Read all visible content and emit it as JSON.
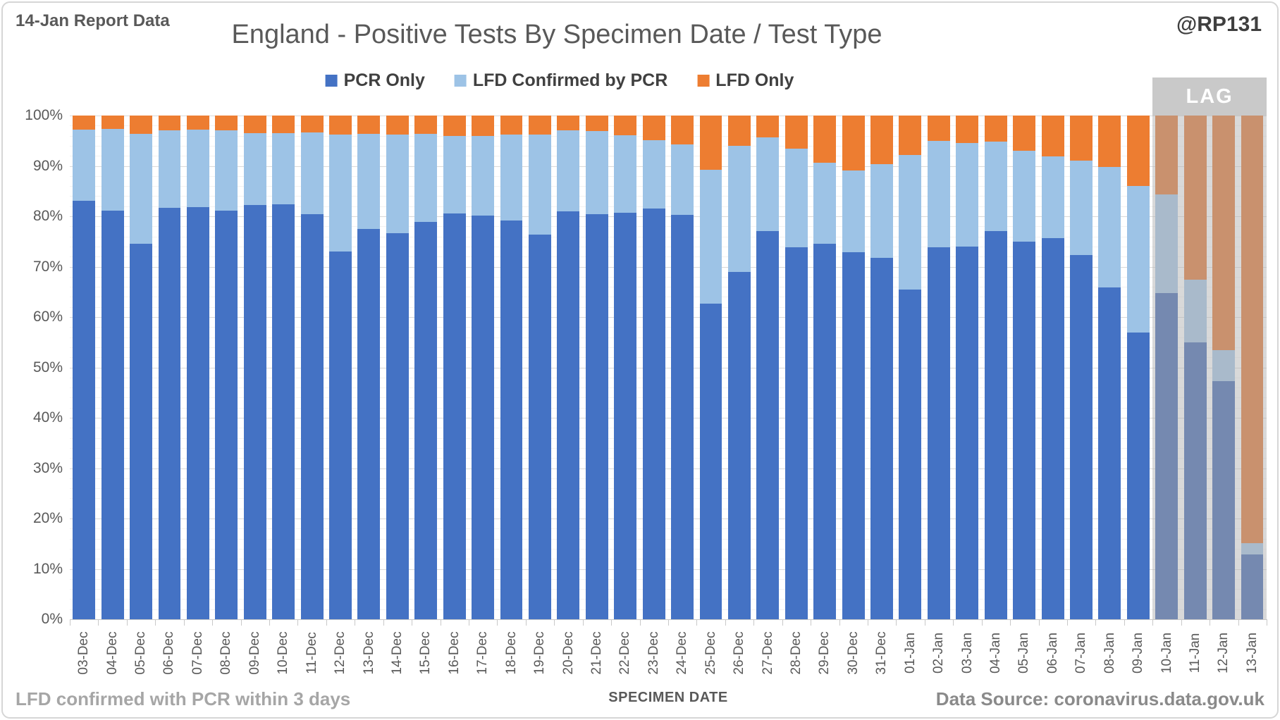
{
  "header": {
    "report_note": "14-Jan Report Data",
    "title": "England - Positive Tests By Specimen Date / Test Type",
    "handle": "@RP131"
  },
  "legend": [
    {
      "label": "PCR Only",
      "color": "#4472C4"
    },
    {
      "label": "LFD Confirmed by PCR",
      "color": "#9DC3E6"
    },
    {
      "label": "LFD Only",
      "color": "#ED7D31"
    }
  ],
  "footer": {
    "left_note": "LFD confirmed with PCR within 3 days",
    "xaxis_title": "SPECIMEN DATE",
    "data_source": "Data Source: coronavirus.data.gov.uk"
  },
  "lag": {
    "label": "LAG",
    "start_category": "10-Jan",
    "num_bars": 4
  },
  "colors": {
    "grid_major": "#D9D9D9",
    "grid_minor": "#F2F2F2",
    "axis": "#C6C6C6",
    "lag_box": "#C9C9C9",
    "lag_text": "#FFFFFF"
  },
  "chart_data": {
    "type": "bar",
    "stacked": true,
    "percent_stacked": true,
    "title": "England - Positive Tests By Specimen Date / Test Type",
    "xlabel": "SPECIMEN DATE",
    "ylabel": "",
    "ylim": [
      0,
      100
    ],
    "ytick_step": 10,
    "ytick_minor_step": 2,
    "ytick_format": "percent",
    "grid": true,
    "legend_position": "top",
    "lag_start_index": 38,
    "categories": [
      "03-Dec",
      "04-Dec",
      "05-Dec",
      "06-Dec",
      "07-Dec",
      "08-Dec",
      "09-Dec",
      "10-Dec",
      "11-Dec",
      "12-Dec",
      "13-Dec",
      "14-Dec",
      "15-Dec",
      "16-Dec",
      "17-Dec",
      "18-Dec",
      "19-Dec",
      "20-Dec",
      "21-Dec",
      "22-Dec",
      "23-Dec",
      "24-Dec",
      "25-Dec",
      "26-Dec",
      "27-Dec",
      "28-Dec",
      "29-Dec",
      "30-Dec",
      "31-Dec",
      "01-Jan",
      "02-Jan",
      "03-Jan",
      "04-Jan",
      "05-Jan",
      "06-Jan",
      "07-Jan",
      "08-Jan",
      "09-Jan",
      "10-Jan",
      "11-Jan",
      "12-Jan",
      "13-Jan"
    ],
    "series": [
      {
        "name": "PCR Only",
        "color": "#4472C4",
        "muted_color": "#7589B0",
        "values": [
          83.1,
          81.1,
          74.5,
          81.7,
          81.8,
          81.1,
          82.2,
          82.4,
          80.4,
          73.0,
          77.5,
          76.6,
          78.9,
          80.5,
          80.2,
          79.2,
          76.4,
          81.0,
          80.4,
          80.7,
          81.6,
          80.3,
          62.7,
          68.9,
          77.0,
          73.9,
          74.6,
          72.9,
          71.8,
          65.5,
          73.8,
          74.0,
          77.0,
          75.0,
          75.7,
          72.3,
          65.9,
          56.9,
          64.7,
          54.9,
          47.3,
          12.9
        ]
      },
      {
        "name": "LFD Confirmed by PCR",
        "color": "#9DC3E6",
        "muted_color": "#A9BACB",
        "values": [
          14.1,
          16.2,
          21.9,
          15.4,
          15.4,
          16.0,
          14.3,
          14.1,
          16.2,
          23.2,
          18.8,
          19.6,
          17.5,
          15.5,
          15.8,
          17.0,
          19.8,
          16.1,
          16.5,
          15.4,
          13.5,
          14.0,
          26.5,
          25.1,
          18.7,
          19.5,
          16.0,
          16.2,
          18.6,
          26.7,
          21.2,
          20.6,
          17.8,
          18.0,
          16.2,
          18.7,
          23.9,
          29.1,
          19.6,
          12.5,
          6.1,
          2.2
        ]
      },
      {
        "name": "LFD Only",
        "color": "#ED7D31",
        "muted_color": "#C9916E",
        "values": [
          2.8,
          2.7,
          3.6,
          2.9,
          2.8,
          2.9,
          3.5,
          3.5,
          3.4,
          3.8,
          3.7,
          3.8,
          3.6,
          4.0,
          4.0,
          3.8,
          3.8,
          2.9,
          3.1,
          3.9,
          4.9,
          5.7,
          10.8,
          6.0,
          4.3,
          6.6,
          9.4,
          10.9,
          9.6,
          7.8,
          5.0,
          5.4,
          5.2,
          7.0,
          8.1,
          9.0,
          10.2,
          14.0,
          15.7,
          32.6,
          46.6,
          84.9
        ]
      }
    ]
  }
}
